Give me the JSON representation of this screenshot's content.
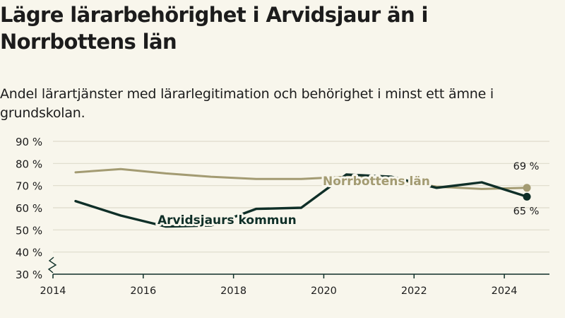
{
  "title": "Lägre lärarbehörighet i Arvidsjaur än i Norrbottens län",
  "subtitle": "Andel lärartjänster med lärarlegitimation och behörighet i minst ett ämne i grundskolan.",
  "colors": {
    "background": "#f8f6ec",
    "arvidsjaur": "#0f2f28",
    "norrbotten": "#a39b72",
    "grid": "#dedbcb",
    "axis": "#0f2f28",
    "text": "#1c1c1c"
  },
  "chart_data": {
    "type": "line",
    "x_tick_labels": [
      "2014",
      "2016",
      "2018",
      "2020",
      "2022",
      "2024"
    ],
    "y_tick_labels": [
      "30 %",
      "40 %",
      "50 %",
      "60 %",
      "70 %",
      "80 %",
      "90 %"
    ],
    "xlim": [
      2014,
      2025.0
    ],
    "ylim": [
      30,
      90
    ],
    "y_axis_break": true,
    "grid": "horizontal",
    "series": [
      {
        "name": "Norrbottens län",
        "color": "#a39b72",
        "x": [
          2014.5,
          2015.5,
          2016.5,
          2017.5,
          2018.5,
          2019.5,
          2020.5,
          2021.5,
          2022.5,
          2023.5,
          2024.5
        ],
        "y": [
          76,
          77.5,
          75.5,
          74,
          73,
          73,
          74,
          73,
          69.5,
          68.5,
          69
        ],
        "end_label": "69 %"
      },
      {
        "name": "Arvidsjaurs kommun",
        "color": "#0f2f28",
        "x": [
          2014.5,
          2015.5,
          2016.5,
          2017.5,
          2018.5,
          2019.5,
          2020.5,
          2021.5,
          2022.5,
          2023.5,
          2024.5
        ],
        "y": [
          63,
          56.5,
          51.5,
          52,
          59.5,
          60,
          75,
          74,
          69,
          71.5,
          65
        ],
        "end_label": "65 %"
      }
    ]
  }
}
